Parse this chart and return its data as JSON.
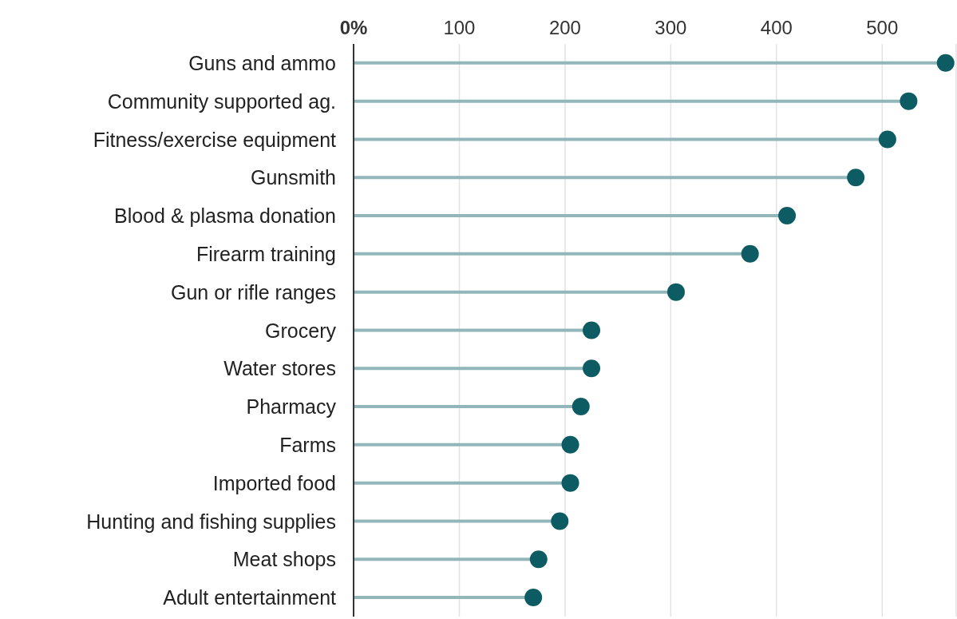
{
  "chart_data": {
    "type": "lollipop",
    "orientation": "horizontal",
    "categories": [
      "Guns and ammo",
      "Community supported ag.",
      "Fitness/exercise equipment",
      "Gunsmith",
      "Blood & plasma donation ",
      "Firearm training",
      "Gun or rifle ranges",
      "Grocery",
      "Water stores",
      "Pharmacy",
      "Farms",
      "Imported food",
      "Hunting and fishing supplies",
      "Meat shops",
      "Adult entertainment"
    ],
    "series": [
      {
        "color": "#0d5c63",
        "values": [
          560,
          525,
          505,
          475,
          410,
          375,
          305,
          225,
          225,
          215,
          205,
          205,
          195,
          175,
          170
        ]
      }
    ],
    "xlim": [
      0,
      570
    ],
    "xticks": [
      {
        "value": 0,
        "label": "0%"
      },
      100,
      200,
      300,
      400,
      500
    ],
    "grid": "x",
    "marker": "circle",
    "legend": false
  }
}
